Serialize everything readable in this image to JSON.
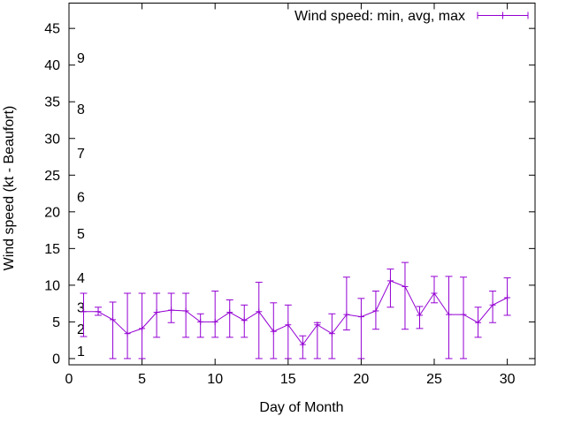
{
  "legend": {
    "label": "Wind speed: min, avg, max"
  },
  "axes": {
    "x_label": "Day of Month",
    "y_label": "Wind speed (kt - Beaufort)",
    "x_ticks": [
      0,
      5,
      10,
      15,
      20,
      25,
      30
    ],
    "y_ticks": [
      0,
      5,
      10,
      15,
      20,
      25,
      30,
      35,
      40,
      45
    ]
  },
  "chart_data": {
    "type": "line",
    "subtype": "yerrorlines",
    "title": "",
    "xlabel": "Day of Month",
    "ylabel": "Wind speed (kt - Beaufort)",
    "xlim": [
      0,
      31.9
    ],
    "ylim": [
      -0.85,
      48.45
    ],
    "grid": false,
    "legend_position": "top-right-inside",
    "color": "#9400D3",
    "axis_color": "#000000",
    "x": [
      1,
      2,
      3,
      4,
      5,
      6,
      7,
      8,
      9,
      10,
      11,
      12,
      13,
      14,
      15,
      16,
      17,
      18,
      19,
      20,
      21,
      22,
      23,
      24,
      25,
      26,
      27,
      28,
      29,
      30
    ],
    "series": [
      {
        "name": "Wind speed: min, avg, max",
        "min": [
          3.0,
          5.9,
          0,
          0,
          0,
          2.9,
          4.9,
          2.9,
          2.9,
          2.9,
          2.9,
          2.9,
          0,
          0,
          0,
          0,
          0,
          0,
          3.9,
          0,
          4.0,
          7.0,
          4.0,
          4.1,
          7.6,
          0,
          0,
          2.9,
          4.9,
          5.9
        ],
        "avg": [
          6.4,
          6.4,
          5.3,
          3.4,
          4.1,
          6.3,
          6.6,
          6.5,
          5.0,
          5.0,
          6.3,
          5.2,
          6.4,
          3.7,
          4.6,
          1.9,
          4.6,
          3.4,
          6.0,
          5.7,
          6.5,
          10.6,
          9.8,
          5.9,
          8.9,
          6.0,
          6.0,
          4.9,
          7.3,
          8.3
        ],
        "max": [
          8.9,
          7.0,
          7.7,
          8.9,
          8.9,
          8.9,
          8.9,
          8.9,
          6.1,
          9.2,
          8.0,
          7.3,
          10.4,
          7.6,
          7.3,
          3.1,
          4.9,
          6.1,
          11.1,
          8.2,
          9.2,
          12.2,
          13.1,
          7.1,
          11.2,
          11.2,
          11.1,
          7.0,
          9.2,
          11.0
        ]
      }
    ],
    "beaufort_scale": [
      {
        "force": "1",
        "kt": 1
      },
      {
        "force": "2",
        "kt": 4
      },
      {
        "force": "3",
        "kt": 7
      },
      {
        "force": "4",
        "kt": 11
      },
      {
        "force": "5",
        "kt": 17
      },
      {
        "force": "6",
        "kt": 22
      },
      {
        "force": "7",
        "kt": 28
      },
      {
        "force": "8",
        "kt": 34
      },
      {
        "force": "9",
        "kt": 41
      }
    ]
  }
}
